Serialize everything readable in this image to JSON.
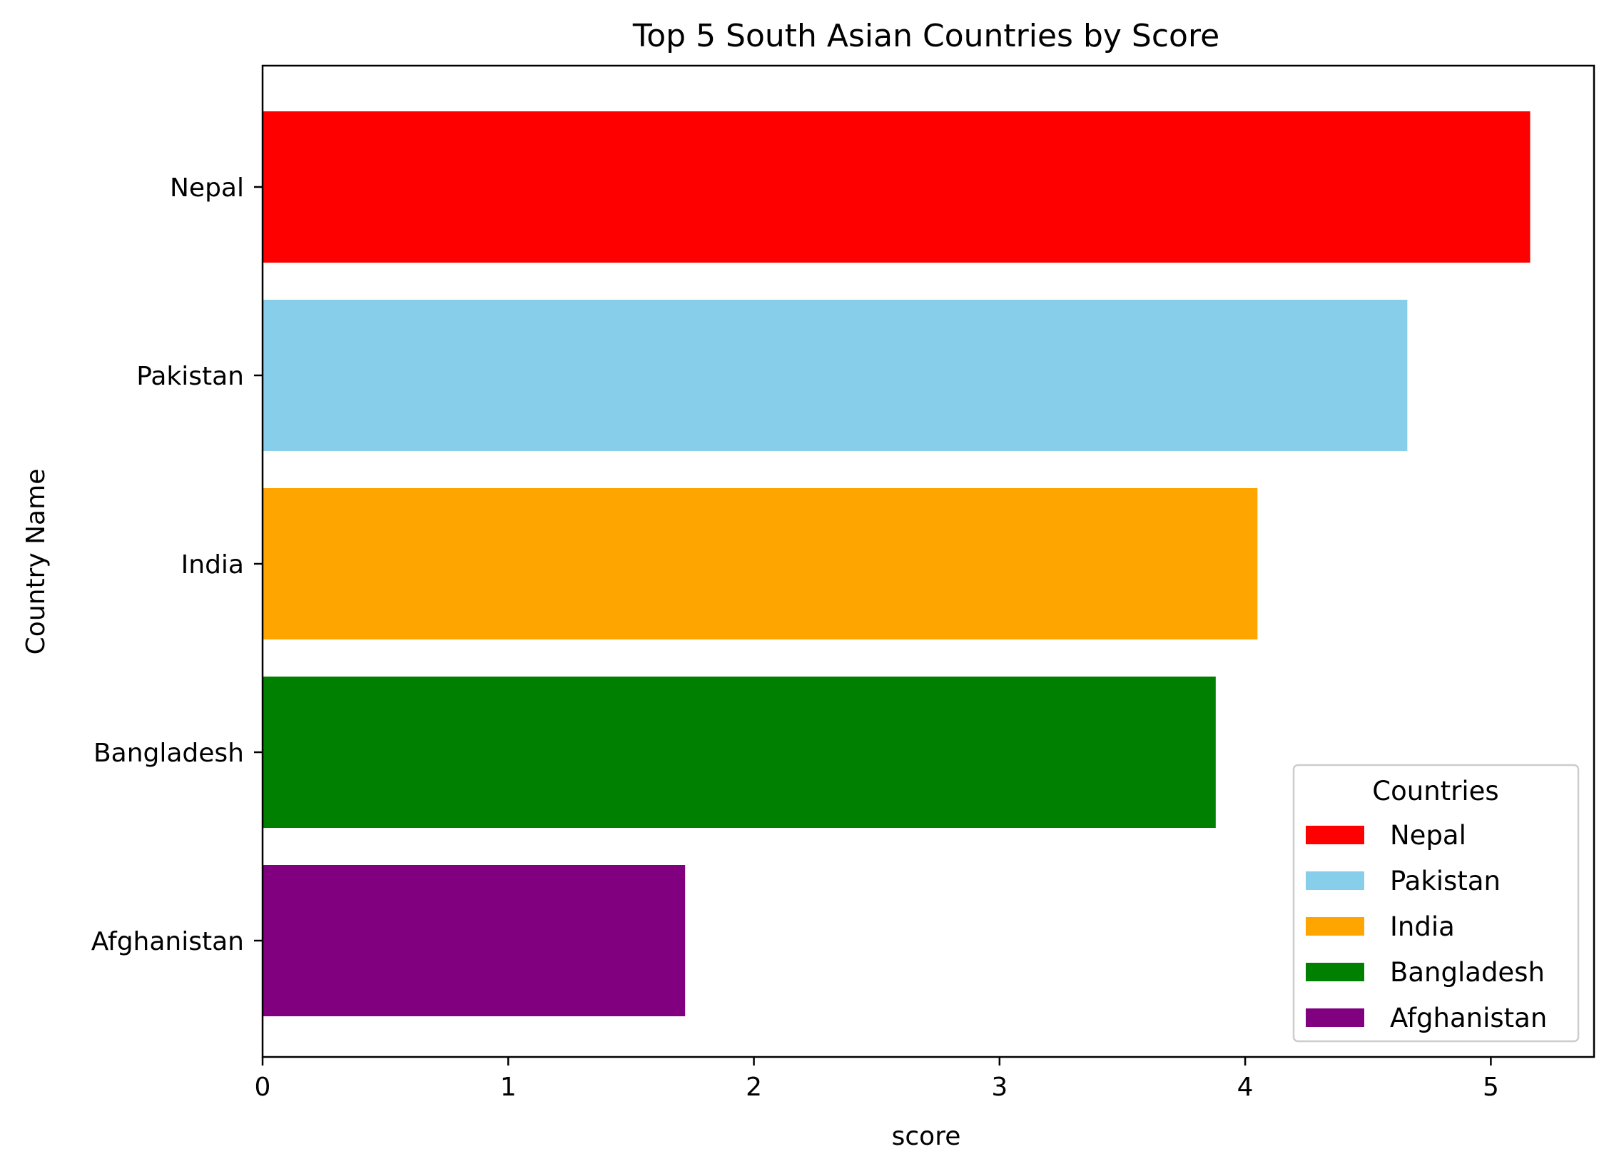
{
  "chart_data": {
    "type": "bar",
    "orientation": "horizontal",
    "title": "Top 5 South Asian Countries by Score",
    "xlabel": "score",
    "ylabel": "Country Name",
    "categories": [
      "Nepal",
      "Pakistan",
      "India",
      "Bangladesh",
      "Afghanistan"
    ],
    "values": [
      5.16,
      4.66,
      4.05,
      3.88,
      1.72
    ],
    "colors": [
      "#ff0000",
      "#87ceeb",
      "#ffa500",
      "#008000",
      "#800080"
    ],
    "xlim": [
      0,
      5.42
    ],
    "xticks": [
      0,
      1,
      2,
      3,
      4,
      5
    ],
    "grid": false,
    "legend": {
      "title": "Countries",
      "placement": "lower-right",
      "entries": [
        "Nepal",
        "Pakistan",
        "India",
        "Bangladesh",
        "Afghanistan"
      ]
    }
  }
}
